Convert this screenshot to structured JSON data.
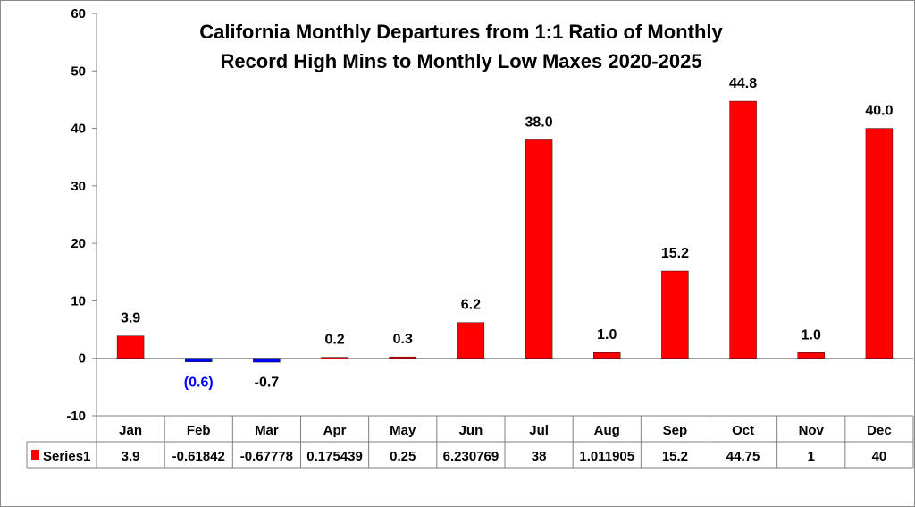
{
  "chart_data": {
    "type": "bar",
    "title_lines": [
      "California Monthly Departures from 1:1 Ratio of Monthly",
      "Record High Mins to Monthly Low Maxes 2020-2025"
    ],
    "categories": [
      "Jan",
      "Feb",
      "Mar",
      "Apr",
      "May",
      "Jun",
      "Jul",
      "Aug",
      "Sep",
      "Oct",
      "Nov",
      "Dec"
    ],
    "series": [
      {
        "name": "Series1",
        "values": [
          3.9,
          -0.61842,
          -0.67778,
          0.175439,
          0.25,
          6.230769,
          38,
          1.011905,
          15.2,
          44.75,
          1,
          40
        ],
        "table_values": [
          "3.9",
          "-0.61842",
          "-0.67778",
          "0.175439",
          "0.25",
          "6.230769",
          "38",
          "1.011905",
          "15.2",
          "44.75",
          "1",
          "40"
        ],
        "data_labels": [
          "3.9",
          "(0.6)",
          "-0.7",
          "0.2",
          "0.3",
          "6.2",
          "38.0",
          "1.0",
          "15.2",
          "44.8",
          "1.0",
          "40.0"
        ]
      }
    ],
    "ylim": [
      -10,
      60
    ],
    "yticks": [
      "-10",
      "0",
      "10",
      "20",
      "30",
      "40",
      "50",
      "60"
    ],
    "gridlines": false,
    "legend": "data-table",
    "colors": {
      "positive": "#ff0000",
      "negative": "#0000ff",
      "label_highlight": "#0000ff"
    },
    "highlight_label_index": 1
  }
}
